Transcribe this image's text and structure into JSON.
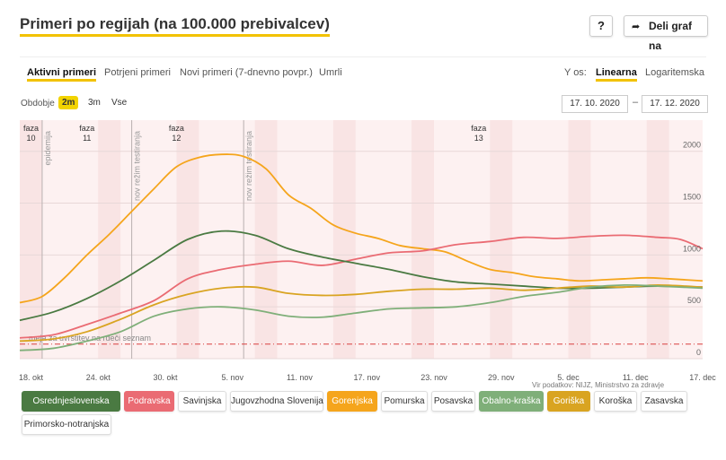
{
  "header": {
    "title": "Primeri po regijah (na 100.000 prebivalcev)",
    "help_label": "?",
    "share_label": "Deli graf na"
  },
  "tabs": [
    "Aktivni primeri",
    "Potrjeni primeri",
    "Novi primeri (7-dnevno povpr.)",
    "Umrli"
  ],
  "active_tab": "Aktivni primeri",
  "y_axis": {
    "label": "Y os:",
    "options": [
      "Linearna",
      "Logaritemska"
    ],
    "active": "Linearna"
  },
  "period": {
    "label": "Obdobje",
    "options": [
      "2m",
      "3m",
      "Vse"
    ],
    "active": "2m",
    "date_from": "17. 10. 2020",
    "date_separator": "–",
    "date_to": "17. 12. 2020"
  },
  "source": "Vir podatkov: NIJZ, Ministrstvo za zdravje",
  "legend": [
    {
      "name": "Osrednjeslovenska",
      "color": "#4a7a42",
      "active": true
    },
    {
      "name": "Podravska",
      "color": "#ea6b73",
      "active": true
    },
    {
      "name": "Savinjska",
      "active": false
    },
    {
      "name": "Jugovzhodna Slovenija",
      "active": false
    },
    {
      "name": "Gorenjska",
      "color": "#f5a51c",
      "active": true
    },
    {
      "name": "Pomurska",
      "active": false
    },
    {
      "name": "Posavska",
      "active": false
    },
    {
      "name": "Obalno-kraška",
      "color": "#7faf79",
      "active": true
    },
    {
      "name": "Goriška",
      "color": "#d9a421",
      "active": true
    },
    {
      "name": "Koroška",
      "active": false
    },
    {
      "name": "Zasavska",
      "active": false
    },
    {
      "name": "Primorsko-notranjska",
      "active": false
    }
  ],
  "chart_data": {
    "type": "line",
    "x_start": "2020-10-17",
    "x_end": "2020-12-17",
    "x_ticks": [
      {
        "date": "2020-10-18",
        "label": "18. okt"
      },
      {
        "date": "2020-10-24",
        "label": "24. okt"
      },
      {
        "date": "2020-10-30",
        "label": "30. okt"
      },
      {
        "date": "2020-11-05",
        "label": "5. nov"
      },
      {
        "date": "2020-11-11",
        "label": "11. nov"
      },
      {
        "date": "2020-11-17",
        "label": "17. nov"
      },
      {
        "date": "2020-11-23",
        "label": "23. nov"
      },
      {
        "date": "2020-11-29",
        "label": "29. nov"
      },
      {
        "date": "2020-12-05",
        "label": "5. dec"
      },
      {
        "date": "2020-12-11",
        "label": "11. dec"
      },
      {
        "date": "2020-12-17",
        "label": "17. dec"
      }
    ],
    "ylim": [
      0,
      2300
    ],
    "y_ticks": [
      0,
      500,
      1000,
      1500,
      2000
    ],
    "grid": true,
    "threshold": {
      "value": 140,
      "label": "meja za uvrstitev na rdeči seznam",
      "color": "#d94040"
    },
    "phases": [
      {
        "lines": [
          "faza",
          "10"
        ],
        "date": "2020-10-18"
      },
      {
        "lines": [
          "faza",
          "11"
        ],
        "date": "2020-10-23"
      },
      {
        "lines": [
          "faza",
          "12"
        ],
        "date": "2020-10-31"
      },
      {
        "lines": [
          "faza",
          "13"
        ],
        "date": "2020-11-27"
      }
    ],
    "markers": [
      {
        "date": "2020-10-19",
        "label": "epidemija"
      },
      {
        "date": "2020-10-27",
        "label": "nov režim testiranja"
      },
      {
        "date": "2020-11-06",
        "label": "nov režim testiranja"
      }
    ],
    "series": [
      {
        "name": "Gorenjska",
        "color": "#f5a51c",
        "points": [
          [
            "2020-10-17",
            540
          ],
          [
            "2020-10-19",
            600
          ],
          [
            "2020-10-21",
            780
          ],
          [
            "2020-10-23",
            1000
          ],
          [
            "2020-10-25",
            1200
          ],
          [
            "2020-10-27",
            1420
          ],
          [
            "2020-10-29",
            1640
          ],
          [
            "2020-10-31",
            1850
          ],
          [
            "2020-11-02",
            1940
          ],
          [
            "2020-11-04",
            1970
          ],
          [
            "2020-11-06",
            1950
          ],
          [
            "2020-11-08",
            1830
          ],
          [
            "2020-11-10",
            1580
          ],
          [
            "2020-11-12",
            1450
          ],
          [
            "2020-11-14",
            1290
          ],
          [
            "2020-11-16",
            1210
          ],
          [
            "2020-11-18",
            1160
          ],
          [
            "2020-11-20",
            1090
          ],
          [
            "2020-11-22",
            1060
          ],
          [
            "2020-11-24",
            1030
          ],
          [
            "2020-11-26",
            940
          ],
          [
            "2020-11-28",
            860
          ],
          [
            "2020-11-30",
            830
          ],
          [
            "2020-12-02",
            790
          ],
          [
            "2020-12-04",
            770
          ],
          [
            "2020-12-06",
            750
          ],
          [
            "2020-12-08",
            760
          ],
          [
            "2020-12-10",
            770
          ],
          [
            "2020-12-12",
            780
          ],
          [
            "2020-12-14",
            770
          ],
          [
            "2020-12-17",
            750
          ]
        ]
      },
      {
        "name": "Podravska",
        "color": "#ea6b73",
        "points": [
          [
            "2020-10-17",
            200
          ],
          [
            "2020-10-20",
            230
          ],
          [
            "2020-10-23",
            330
          ],
          [
            "2020-10-26",
            440
          ],
          [
            "2020-10-29",
            560
          ],
          [
            "2020-11-01",
            770
          ],
          [
            "2020-11-04",
            860
          ],
          [
            "2020-11-07",
            910
          ],
          [
            "2020-11-10",
            940
          ],
          [
            "2020-11-13",
            900
          ],
          [
            "2020-11-16",
            960
          ],
          [
            "2020-11-19",
            1020
          ],
          [
            "2020-11-22",
            1040
          ],
          [
            "2020-11-25",
            1100
          ],
          [
            "2020-11-28",
            1130
          ],
          [
            "2020-12-01",
            1170
          ],
          [
            "2020-12-04",
            1160
          ],
          [
            "2020-12-07",
            1180
          ],
          [
            "2020-12-10",
            1190
          ],
          [
            "2020-12-13",
            1170
          ],
          [
            "2020-12-15",
            1150
          ],
          [
            "2020-12-17",
            1060
          ]
        ]
      },
      {
        "name": "Osrednjeslovenska",
        "color": "#4a7a42",
        "points": [
          [
            "2020-10-17",
            370
          ],
          [
            "2020-10-20",
            450
          ],
          [
            "2020-10-23",
            580
          ],
          [
            "2020-10-26",
            750
          ],
          [
            "2020-10-29",
            950
          ],
          [
            "2020-11-01",
            1150
          ],
          [
            "2020-11-04",
            1230
          ],
          [
            "2020-11-07",
            1190
          ],
          [
            "2020-11-10",
            1060
          ],
          [
            "2020-11-13",
            980
          ],
          [
            "2020-11-16",
            920
          ],
          [
            "2020-11-19",
            860
          ],
          [
            "2020-11-22",
            790
          ],
          [
            "2020-11-25",
            740
          ],
          [
            "2020-11-28",
            720
          ],
          [
            "2020-12-01",
            700
          ],
          [
            "2020-12-04",
            680
          ],
          [
            "2020-12-07",
            680
          ],
          [
            "2020-12-10",
            690
          ],
          [
            "2020-12-13",
            700
          ],
          [
            "2020-12-17",
            690
          ]
        ]
      },
      {
        "name": "Goriška",
        "color": "#d9a421",
        "points": [
          [
            "2020-10-17",
            170
          ],
          [
            "2020-10-20",
            190
          ],
          [
            "2020-10-23",
            260
          ],
          [
            "2020-10-26",
            380
          ],
          [
            "2020-10-29",
            520
          ],
          [
            "2020-11-01",
            620
          ],
          [
            "2020-11-04",
            680
          ],
          [
            "2020-11-07",
            690
          ],
          [
            "2020-11-10",
            630
          ],
          [
            "2020-11-13",
            610
          ],
          [
            "2020-11-16",
            620
          ],
          [
            "2020-11-19",
            650
          ],
          [
            "2020-11-22",
            670
          ],
          [
            "2020-11-25",
            670
          ],
          [
            "2020-11-28",
            680
          ],
          [
            "2020-12-01",
            660
          ],
          [
            "2020-12-04",
            680
          ],
          [
            "2020-12-07",
            700
          ],
          [
            "2020-12-10",
            690
          ],
          [
            "2020-12-13",
            710
          ],
          [
            "2020-12-17",
            690
          ]
        ]
      },
      {
        "name": "Obalno-kraška",
        "color": "#7faf79",
        "points": [
          [
            "2020-10-17",
            80
          ],
          [
            "2020-10-20",
            100
          ],
          [
            "2020-10-23",
            170
          ],
          [
            "2020-10-26",
            260
          ],
          [
            "2020-10-29",
            410
          ],
          [
            "2020-11-01",
            480
          ],
          [
            "2020-11-04",
            500
          ],
          [
            "2020-11-07",
            470
          ],
          [
            "2020-11-10",
            410
          ],
          [
            "2020-11-13",
            400
          ],
          [
            "2020-11-16",
            440
          ],
          [
            "2020-11-19",
            480
          ],
          [
            "2020-11-22",
            490
          ],
          [
            "2020-11-25",
            500
          ],
          [
            "2020-11-28",
            540
          ],
          [
            "2020-12-01",
            600
          ],
          [
            "2020-12-04",
            640
          ],
          [
            "2020-12-07",
            690
          ],
          [
            "2020-12-10",
            710
          ],
          [
            "2020-12-13",
            700
          ],
          [
            "2020-12-17",
            680
          ]
        ]
      }
    ]
  }
}
